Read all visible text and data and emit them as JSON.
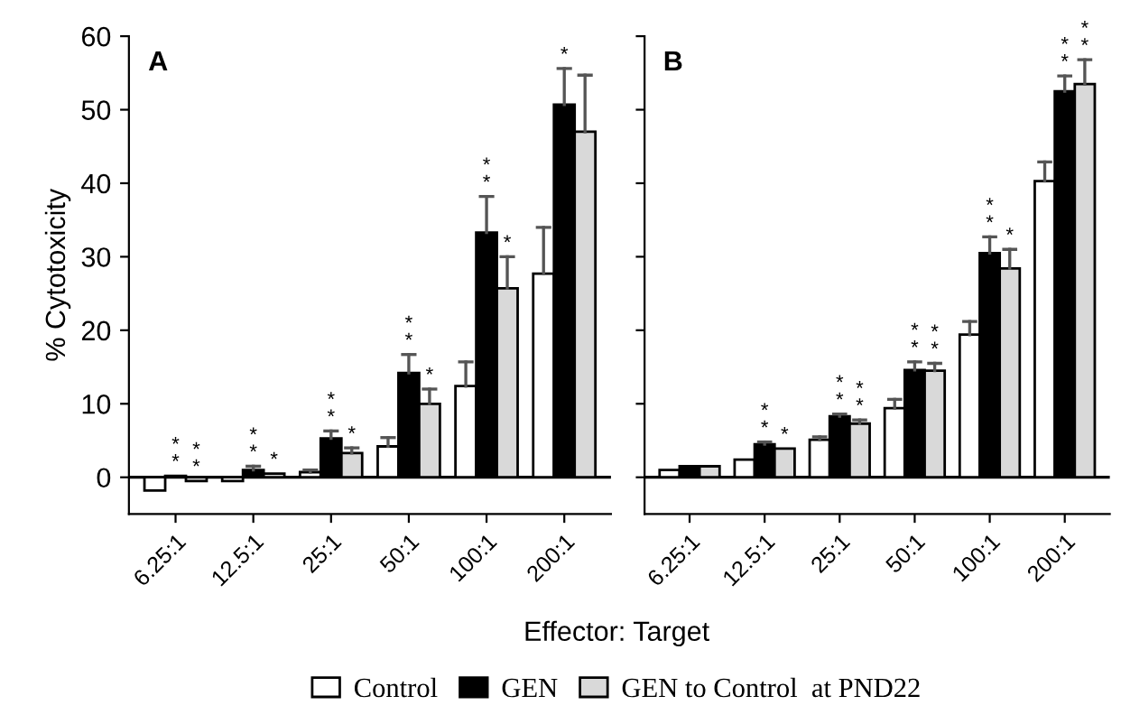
{
  "chart_data": [
    {
      "type": "bar",
      "title": "A",
      "ylabel": "% Cytotoxicity",
      "xlabel": "Effector: Target",
      "categories": [
        "6.25:1",
        "12.5:1",
        "25:1",
        "50:1",
        "100:1",
        "200:1"
      ],
      "ylim": [
        -5,
        60
      ],
      "yticks": [
        0,
        10,
        20,
        30,
        40,
        50,
        60
      ],
      "legend": "bottom",
      "ref_lines": [
        {
          "axis": "y",
          "value": 0,
          "label": null
        }
      ],
      "series": [
        {
          "name": "Control",
          "color": "#ffffff",
          "values": [
            -1.8,
            -0.5,
            0.7,
            4.2,
            12.4,
            27.7
          ],
          "errors": [
            null,
            null,
            0.3,
            1.2,
            3.3,
            6.3
          ],
          "value_labels": [
            null,
            null,
            null,
            null,
            null,
            null
          ]
        },
        {
          "name": "GEN",
          "color": "#000000",
          "values": [
            0.2,
            1.0,
            5.3,
            14.2,
            33.3,
            50.7
          ],
          "errors": [
            null,
            0.5,
            1.0,
            2.5,
            4.9,
            4.9
          ],
          "value_labels": [
            "*\n*",
            "*\n*",
            "*\n*",
            "*\n*",
            "*\n*",
            "*"
          ]
        },
        {
          "name": "GEN to Control  at PND22",
          "color": "#d9d9d9",
          "values": [
            -0.5,
            0.5,
            3.3,
            10.0,
            25.7,
            47.0
          ],
          "errors": [
            null,
            null,
            0.7,
            2.0,
            4.3,
            7.7
          ],
          "value_labels": [
            "*\n*",
            "*",
            "*",
            "*",
            "*",
            null
          ]
        }
      ]
    },
    {
      "type": "bar",
      "title": "B",
      "categories": [
        "6.25:1",
        "12.5:1",
        "25:1",
        "50:1",
        "100:1",
        "200:1"
      ],
      "ylim": [
        -5,
        60
      ],
      "yticks": [
        0,
        10,
        20,
        30,
        40,
        50,
        60
      ],
      "tick_labels": "x",
      "ref_lines": [
        {
          "axis": "y",
          "value": 0,
          "label": null
        }
      ],
      "series": [
        {
          "color": "#ffffff",
          "values": [
            1.0,
            2.4,
            5.1,
            9.4,
            19.4,
            40.3
          ],
          "errors": [
            null,
            null,
            0.4,
            1.2,
            1.8,
            2.6
          ],
          "value_labels": [
            null,
            null,
            null,
            null,
            null,
            null
          ]
        },
        {
          "color": "#000000",
          "values": [
            1.5,
            4.5,
            8.3,
            14.6,
            30.5,
            52.5
          ],
          "errors": [
            null,
            0.3,
            0.3,
            1.1,
            2.2,
            2.1
          ],
          "value_labels": [
            null,
            "*\n*",
            "*\n*",
            "*\n*",
            "*\n*",
            "*\n*"
          ]
        },
        {
          "color": "#d9d9d9",
          "values": [
            1.5,
            3.9,
            7.3,
            14.5,
            28.4,
            53.5
          ],
          "errors": [
            null,
            null,
            0.5,
            1.0,
            2.6,
            3.3
          ],
          "value_labels": [
            null,
            "*",
            "*\n*",
            "*\n*",
            "*",
            "*\n*"
          ]
        }
      ]
    }
  ]
}
